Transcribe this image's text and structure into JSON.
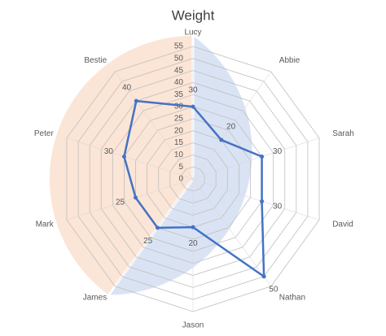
{
  "chart_data": {
    "type": "radar",
    "title": "Weight",
    "categories": [
      "Lucy",
      "Abbie",
      "Sarah",
      "David",
      "Nathan",
      "Jason",
      "James",
      "Mark",
      "Peter",
      "Bestie"
    ],
    "series": [
      {
        "color": "#4472c4",
        "values": [
          30,
          20,
          30,
          30,
          50,
          20,
          25,
          25,
          30,
          40
        ]
      }
    ],
    "ylim": [
      0,
      55
    ],
    "yticks": [
      0,
      5,
      10,
      15,
      20,
      25,
      30,
      35,
      40,
      45,
      50,
      55
    ],
    "grid": true,
    "data_labels": true
  }
}
